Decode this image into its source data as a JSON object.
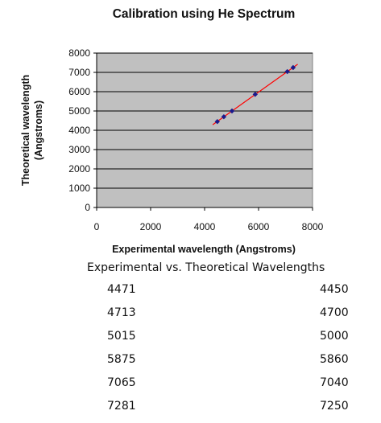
{
  "chart_data": {
    "type": "scatter",
    "title": "Calibration using He Spectrum",
    "xlabel": "Experimental wavelength (Angstroms)",
    "ylabel_lines": [
      "Theoretical wavelength",
      "(Angstroms)"
    ],
    "xlim": [
      0,
      8000
    ],
    "ylim": [
      0,
      8000
    ],
    "xticks": [
      0,
      2000,
      4000,
      6000,
      8000
    ],
    "yticks": [
      0,
      1000,
      2000,
      3000,
      4000,
      5000,
      6000,
      7000,
      8000
    ],
    "grid": "horizontal",
    "legend": "none",
    "series": [
      {
        "x": [
          4471,
          4713,
          5015,
          5875,
          7065,
          7281
        ],
        "y": [
          4450,
          4700,
          5000,
          5860,
          7040,
          7250
        ]
      }
    ],
    "trendline": {
      "type": "linear",
      "x_range": [
        4300,
        7450
      ],
      "color": "#ff0000"
    },
    "colors": {
      "plot_background": "#c0c0c0",
      "marker": "#1a1a8c",
      "grid": "#000000"
    }
  },
  "table": {
    "title": "Experimental vs. Theoretical Wavelengths",
    "rows": [
      {
        "experimental": "4471",
        "theoretical": "4450"
      },
      {
        "experimental": "4713",
        "theoretical": "4700"
      },
      {
        "experimental": "5015",
        "theoretical": "5000"
      },
      {
        "experimental": "5875",
        "theoretical": "5860"
      },
      {
        "experimental": "7065",
        "theoretical": "7040"
      },
      {
        "experimental": "7281",
        "theoretical": "7250"
      }
    ]
  }
}
